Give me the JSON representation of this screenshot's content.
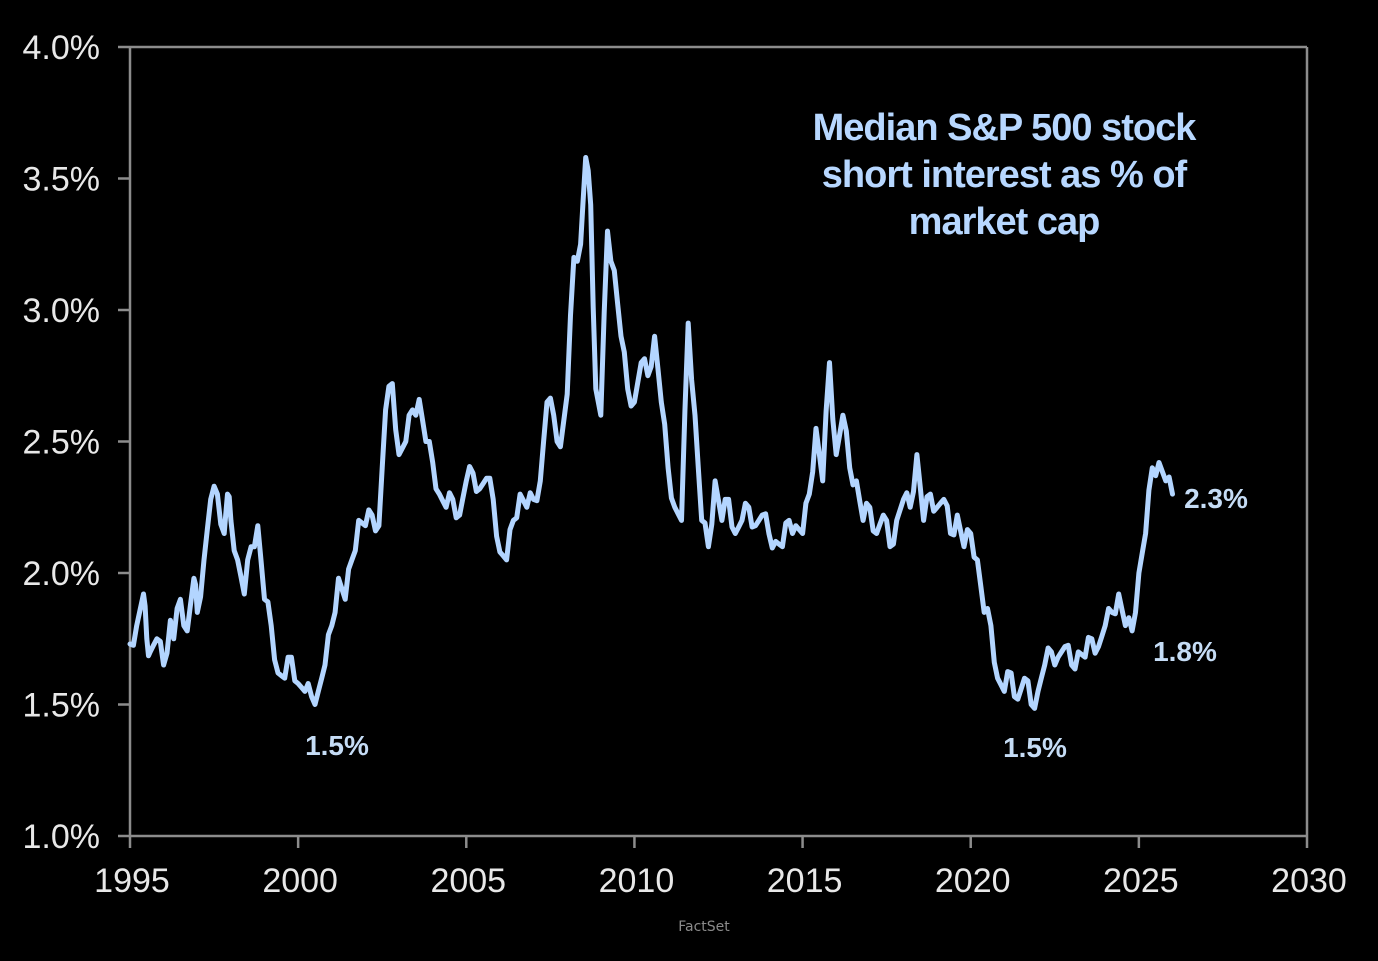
{
  "chart_data": {
    "type": "line",
    "title": "Median S&P 500 stock short interest as % of market cap",
    "title_lines": [
      "Median S&P 500 stock",
      "short interest as % of",
      "market cap"
    ],
    "xlabel": "",
    "ylabel": "",
    "xlim": [
      1995,
      2030
    ],
    "ylim": [
      1.0,
      4.0
    ],
    "x_ticks": [
      1995,
      2000,
      2005,
      2010,
      2015,
      2020,
      2025,
      2030
    ],
    "x_tick_labels": [
      "1995",
      "2000",
      "2005",
      "2010",
      "2015",
      "2020",
      "2025",
      "2030"
    ],
    "y_ticks": [
      1.0,
      1.5,
      2.0,
      2.5,
      3.0,
      3.5,
      4.0
    ],
    "y_tick_labels": [
      "1.0%",
      "1.5%",
      "2.0%",
      "2.5%",
      "3.0%",
      "3.5%",
      "4.0%"
    ],
    "grid": false,
    "legend": "none",
    "line_color": "#b3d5ff",
    "series": [
      {
        "name": "Median S&P 500 short interest (% of market cap)",
        "x": [
          1995.0,
          1995.2,
          1995.4,
          1995.5,
          1995.6,
          1995.8,
          1996.0,
          1996.2,
          1996.3,
          1996.5,
          1996.7,
          1996.9,
          1997.0,
          1997.2,
          1997.4,
          1997.6,
          1997.8,
          1997.9,
          1998.0,
          1998.2,
          1998.4,
          1998.6,
          1998.8,
          1999.0,
          1999.2,
          1999.4,
          1999.6,
          1999.8,
          2000.0,
          2000.2,
          2000.4,
          2000.6,
          2000.8,
          2001.0,
          2001.2,
          2001.4,
          2001.6,
          2001.8,
          2002.0,
          2002.2,
          2002.4,
          2002.6,
          2002.8,
          2003.0,
          2003.2,
          2003.4,
          2003.6,
          2003.8,
          2004.0,
          2004.2,
          2004.4,
          2004.6,
          2004.8,
          2005.0,
          2005.2,
          2005.4,
          2005.6,
          2005.8,
          2006.0,
          2006.2,
          2006.4,
          2006.6,
          2006.8,
          2007.0,
          2007.2,
          2007.4,
          2007.6,
          2007.8,
          2008.0,
          2008.2,
          2008.4,
          2008.55,
          2008.7,
          2008.85,
          2009.0,
          2009.2,
          2009.4,
          2009.6,
          2009.8,
          2010.0,
          2010.2,
          2010.4,
          2010.6,
          2010.8,
          2011.0,
          2011.2,
          2011.4,
          2011.6,
          2011.8,
          2012.0,
          2012.2,
          2012.4,
          2012.6,
          2012.8,
          2013.0,
          2013.2,
          2013.4,
          2013.6,
          2013.8,
          2014.0,
          2014.2,
          2014.4,
          2014.6,
          2014.8,
          2015.0,
          2015.2,
          2015.4,
          2015.6,
          2015.8,
          2016.0,
          2016.2,
          2016.4,
          2016.6,
          2016.8,
          2017.0,
          2017.2,
          2017.4,
          2017.6,
          2017.8,
          2018.0,
          2018.2,
          2018.4,
          2018.6,
          2018.8,
          2019.0,
          2019.2,
          2019.4,
          2019.6,
          2019.8,
          2020.0,
          2020.2,
          2020.4,
          2020.6,
          2020.8,
          2021.0,
          2021.2,
          2021.4,
          2021.6,
          2021.8,
          2022.0,
          2022.2,
          2022.4,
          2022.6,
          2022.8,
          2023.0,
          2023.2,
          2023.4,
          2023.6,
          2023.8,
          2024.0,
          2024.2,
          2024.4,
          2024.6,
          2024.8,
          2025.0,
          2025.2,
          2025.4,
          2025.6,
          2025.8,
          2026.0
        ],
        "y": [
          1.73,
          1.8,
          1.92,
          1.75,
          1.7,
          1.75,
          1.65,
          1.82,
          1.75,
          1.9,
          1.78,
          1.98,
          1.85,
          2.05,
          2.28,
          2.3,
          2.15,
          2.3,
          2.2,
          2.05,
          1.92,
          2.1,
          2.18,
          1.9,
          1.8,
          1.62,
          1.6,
          1.68,
          1.58,
          1.55,
          1.53,
          1.55,
          1.65,
          1.8,
          1.98,
          1.9,
          2.05,
          2.2,
          2.18,
          2.22,
          2.18,
          2.62,
          2.72,
          2.45,
          2.5,
          2.62,
          2.66,
          2.5,
          2.42,
          2.3,
          2.25,
          2.28,
          2.22,
          2.35,
          2.38,
          2.32,
          2.36,
          2.28,
          2.08,
          2.05,
          2.2,
          2.3,
          2.25,
          2.28,
          2.35,
          2.65,
          2.6,
          2.48,
          2.68,
          3.2,
          3.25,
          3.58,
          3.4,
          2.7,
          2.6,
          3.3,
          3.15,
          2.9,
          2.7,
          2.65,
          2.8,
          2.75,
          2.9,
          2.65,
          2.4,
          2.25,
          2.2,
          2.95,
          2.6,
          2.2,
          2.1,
          2.35,
          2.2,
          2.28,
          2.15,
          2.2,
          2.25,
          2.18,
          2.22,
          2.15,
          2.12,
          2.1,
          2.2,
          2.18,
          2.15,
          2.3,
          2.55,
          2.35,
          2.8,
          2.45,
          2.6,
          2.4,
          2.35,
          2.2,
          2.25,
          2.15,
          2.22,
          2.1,
          2.2,
          2.28,
          2.25,
          2.45,
          2.2,
          2.3,
          2.25,
          2.28,
          2.15,
          2.22,
          2.1,
          2.15,
          2.05,
          1.85,
          1.8,
          1.6,
          1.55,
          1.62,
          1.52,
          1.6,
          1.5,
          1.55,
          1.65,
          1.7,
          1.68,
          1.72,
          1.65,
          1.7,
          1.68,
          1.75,
          1.72,
          1.8,
          1.85,
          1.92,
          1.8,
          1.78,
          2.0,
          2.15,
          2.4,
          2.42,
          2.35,
          2.3
        ]
      }
    ],
    "annotations": [
      {
        "text": "1.5%",
        "x": 2000.0,
        "y": 1.5
      },
      {
        "text": "1.5%",
        "x": 2021.8,
        "y": 1.5
      },
      {
        "text": "1.8%",
        "x": 2024.8,
        "y": 1.8
      },
      {
        "text": "2.3%",
        "x": 2026.0,
        "y": 2.3
      }
    ]
  },
  "source": "FactSet"
}
